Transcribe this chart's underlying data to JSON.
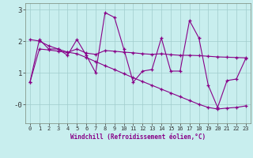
{
  "xlabel": "Windchill (Refroidissement éolien,°C)",
  "x": [
    0,
    1,
    2,
    3,
    4,
    5,
    6,
    7,
    8,
    9,
    10,
    11,
    12,
    13,
    14,
    15,
    16,
    17,
    18,
    19,
    20,
    21,
    22,
    23
  ],
  "line_jagged": [
    0.7,
    2.05,
    1.75,
    1.75,
    1.55,
    2.05,
    1.55,
    1.0,
    2.9,
    2.75,
    1.75,
    0.7,
    1.05,
    1.1,
    2.1,
    1.05,
    1.05,
    2.65,
    2.1,
    0.6,
    -0.1,
    0.75,
    0.8,
    1.45
  ],
  "line_flat": [
    0.7,
    1.75,
    1.72,
    1.68,
    1.64,
    1.75,
    1.62,
    1.58,
    1.7,
    1.68,
    1.65,
    1.63,
    1.6,
    1.58,
    1.6,
    1.57,
    1.55,
    1.55,
    1.54,
    1.52,
    1.5,
    1.49,
    1.48,
    1.47
  ],
  "line_decline": [
    2.05,
    2.0,
    1.85,
    1.75,
    1.65,
    1.6,
    1.48,
    1.35,
    1.22,
    1.1,
    0.97,
    0.84,
    0.72,
    0.6,
    0.48,
    0.36,
    0.24,
    0.12,
    0.0,
    -0.1,
    -0.15,
    -0.12,
    -0.1,
    -0.05
  ],
  "line_color": "#880088",
  "bg_color": "#c8eeee",
  "grid_color": "#a0cccc",
  "ylim": [
    -0.6,
    3.2
  ],
  "yticks": [
    0,
    1,
    2,
    3
  ],
  "ytick_labels": [
    "-0",
    "1",
    "2",
    "3"
  ]
}
